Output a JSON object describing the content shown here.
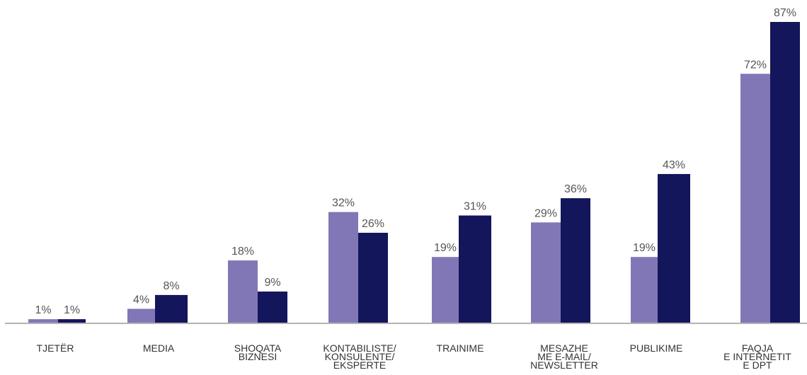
{
  "chart_data": {
    "type": "bar",
    "categories": [
      "TJETËR",
      "MEDIA",
      "SHOQATA BIZNESI",
      "KONTABILISTE/ KONSULENTE/ EKSPERTE",
      "TRAINIME",
      "MESAZHE ME E-MAIL/ NEWSLETTER",
      "PUBLIKIME",
      "FAQJA E INTERNETIT E DPT"
    ],
    "category_lines": [
      [
        "TJETËR"
      ],
      [
        "MEDIA"
      ],
      [
        "SHOQATA",
        "BIZNESI"
      ],
      [
        "KONTABILISTE/",
        "KONSULENTE/",
        "EKSPERTE"
      ],
      [
        "TRAINIME"
      ],
      [
        "MESAZHE",
        "ME E-MAIL/",
        "NEWSLETTER"
      ],
      [
        "PUBLIKIME"
      ],
      [
        "FAQJA",
        "E INTERNETIT",
        "E DPT"
      ]
    ],
    "series": [
      {
        "values": [
          1,
          4,
          18,
          32,
          19,
          29,
          19,
          72
        ],
        "labels": [
          "1%",
          "4%",
          "18%",
          "32%",
          "19%",
          "29%",
          "19%",
          "72%"
        ],
        "color": "#8177b7"
      },
      {
        "values": [
          1,
          8,
          9,
          26,
          31,
          36,
          43,
          87
        ],
        "labels": [
          "1%",
          "8%",
          "9%",
          "26%",
          "31%",
          "36%",
          "43%",
          "87%"
        ],
        "color": "#13165a"
      }
    ],
    "ylim": [
      0,
      87
    ],
    "grid": false,
    "legend": "none",
    "axis_color": "#b3b3b3",
    "label_color": "#555555",
    "category_color": "#333333"
  }
}
